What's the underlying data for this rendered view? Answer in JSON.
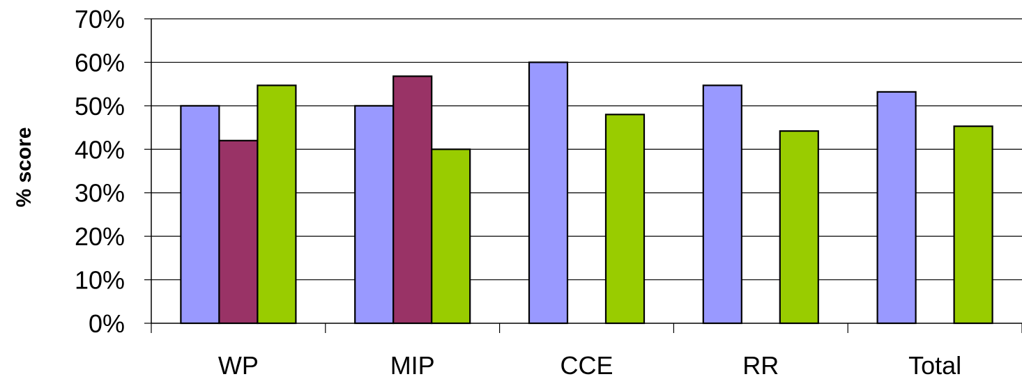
{
  "chart_data": {
    "type": "bar",
    "title": "",
    "xlabel": "",
    "ylabel": "% score",
    "ylim": [
      0,
      70
    ],
    "yticks": [
      "0%",
      "10%",
      "20%",
      "30%",
      "40%",
      "50%",
      "60%",
      "70%"
    ],
    "grid": true,
    "legend": "none",
    "categories": [
      "WP",
      "MIP",
      "CCE",
      "RR",
      "Total"
    ],
    "series": [
      {
        "color": "#9999ff",
        "values": [
          50,
          50,
          60,
          54.7,
          53.2
        ]
      },
      {
        "color": "#993366",
        "values": [
          42,
          56.8,
          null,
          null,
          null
        ]
      },
      {
        "color": "#99cc00",
        "values": [
          54.7,
          40,
          48,
          44.2,
          45.3
        ]
      }
    ]
  }
}
